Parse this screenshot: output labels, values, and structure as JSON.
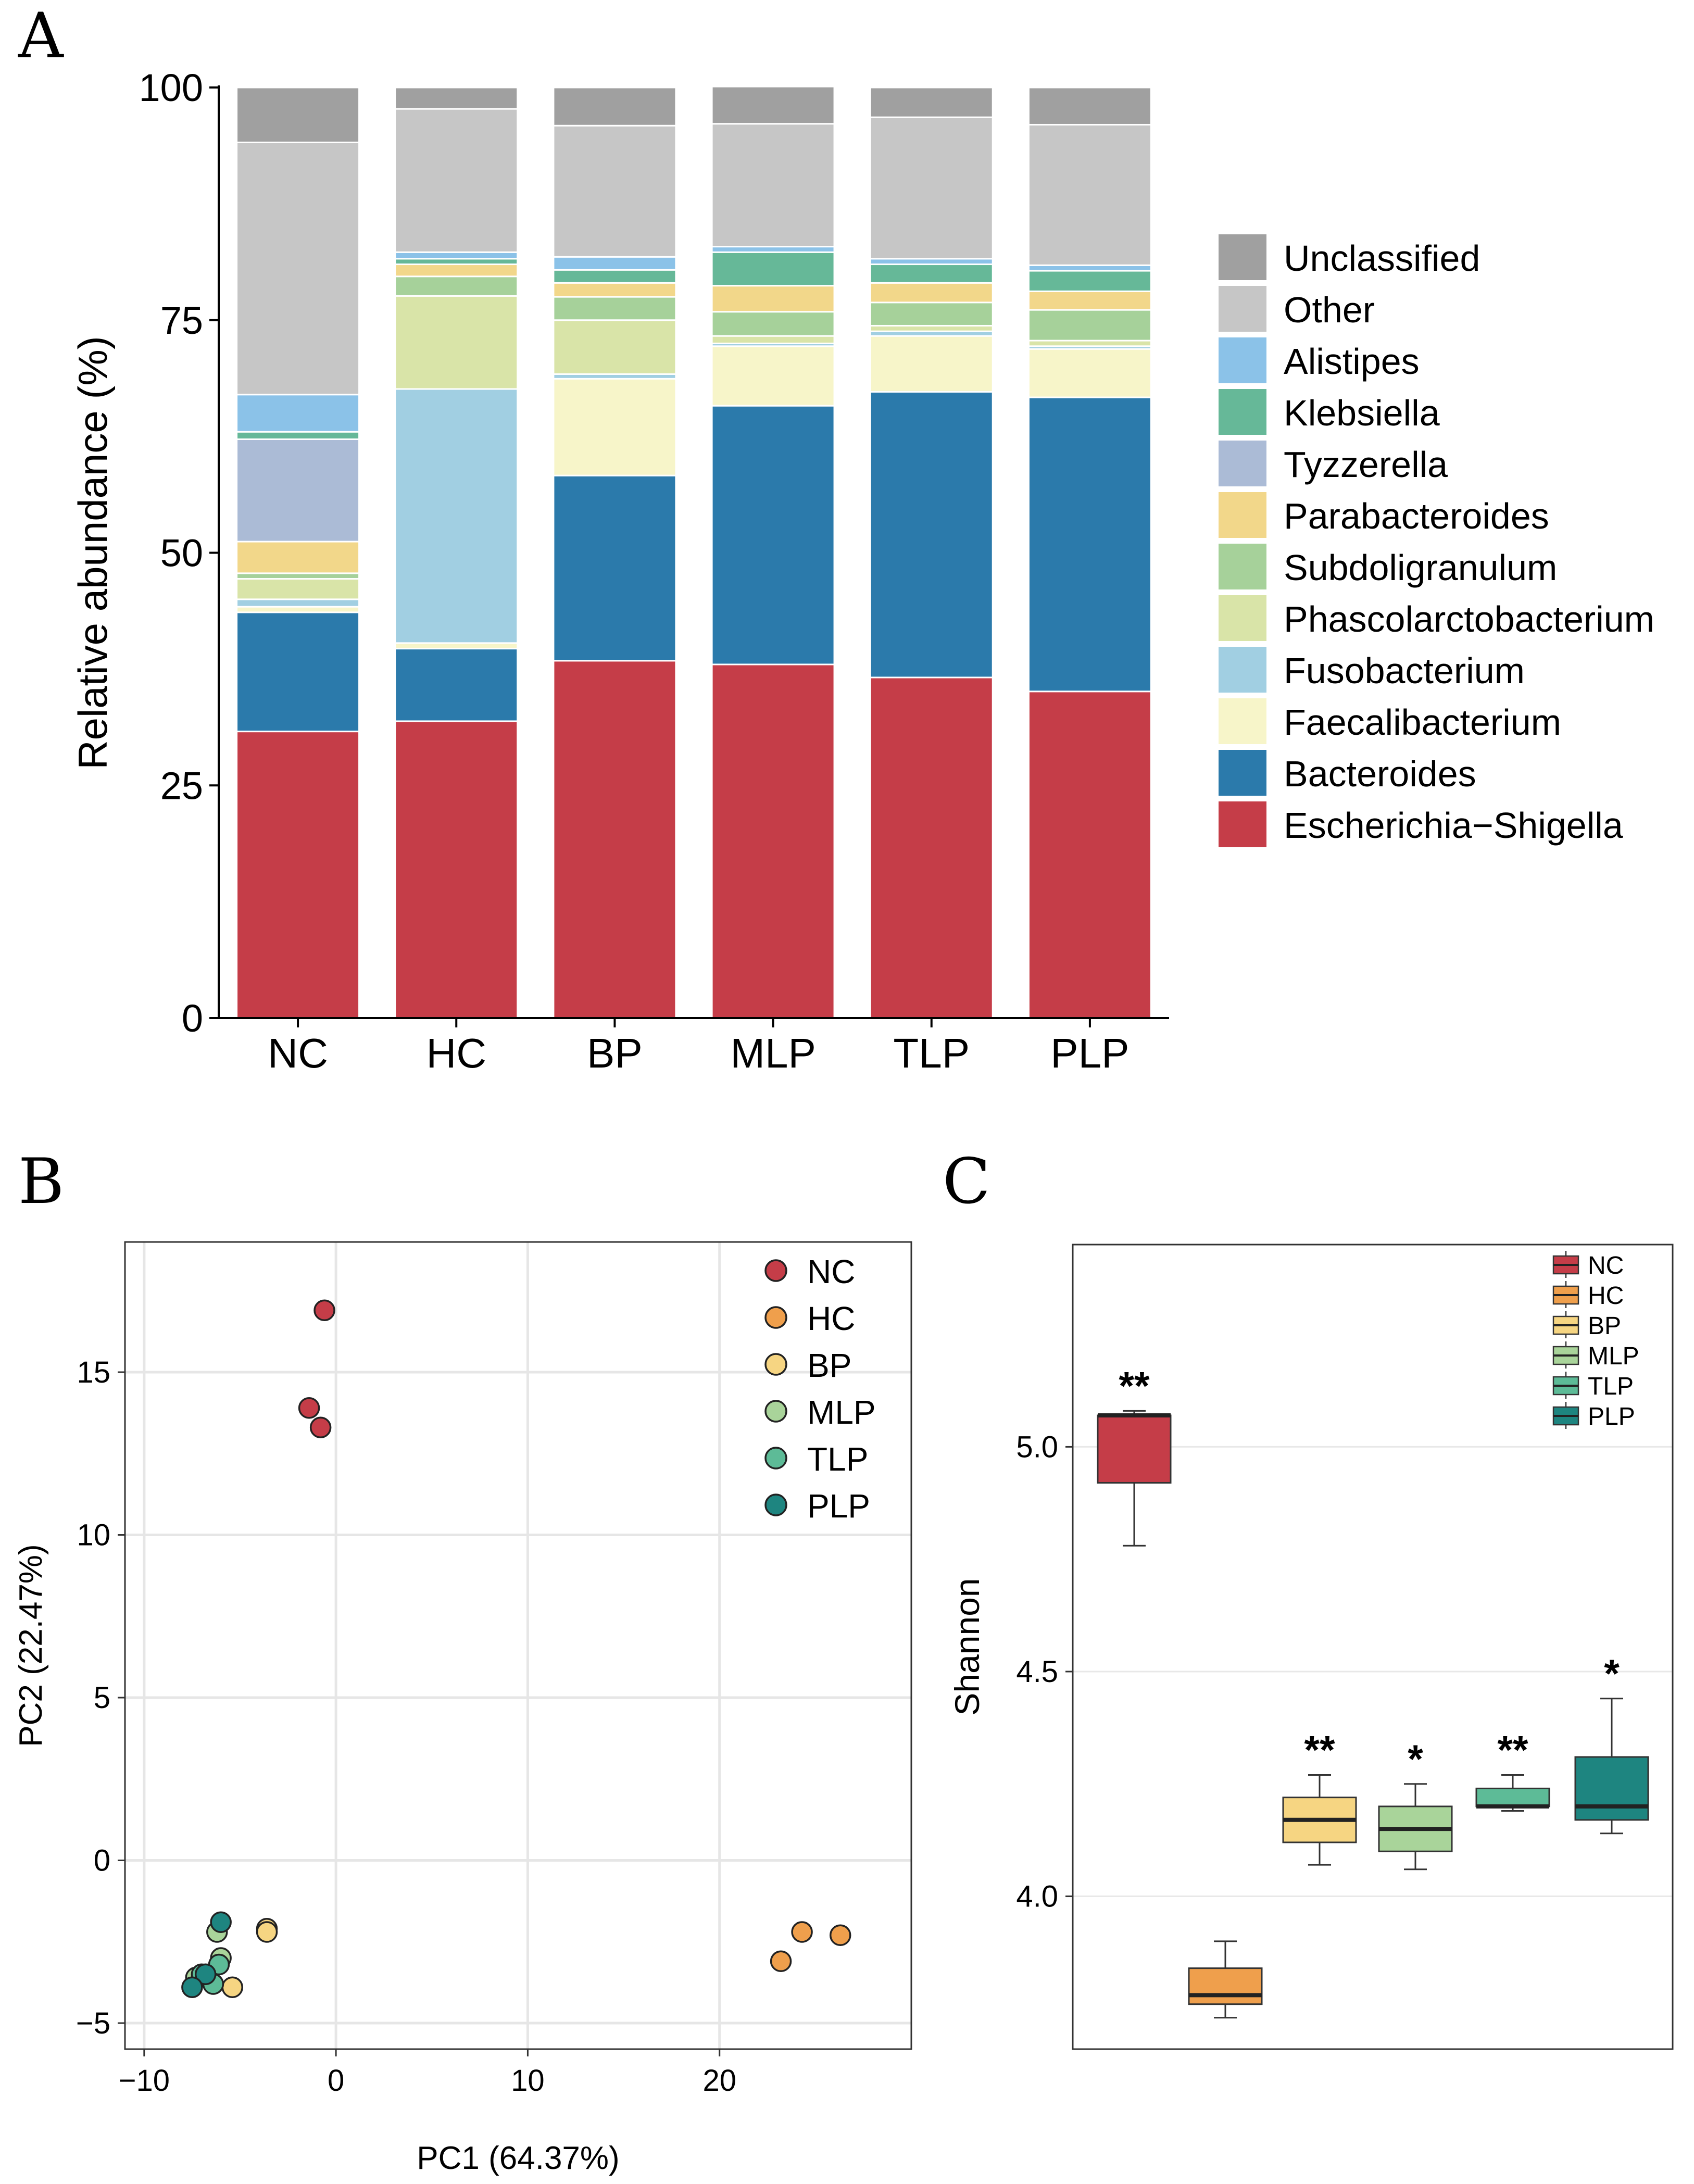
{
  "colors": {
    "Unclassified": "#a0a0a0",
    "Other": "#c6c6c6",
    "Alistipes": "#8bc2e8",
    "Klebsiella": "#66b898",
    "Tyzzerella": "#abbbd6",
    "Parabacteroides": "#f2d78a",
    "Subdoligranulum": "#a6d19a",
    "Phascolarctobacterium": "#d9e4a8",
    "Fusobacterium": "#a1cfe2",
    "Faecalibacterium": "#f7f5c9",
    "Bacteroides": "#2b7aab",
    "Escherichia-Shigella": "#c53d48",
    "NC": "#c53d48",
    "HC": "#ef9f4c",
    "BP": "#f6d582",
    "MLP": "#a9d49a",
    "TLP": "#5dbb97",
    "PLP": "#1e8580"
  },
  "chart_data": [
    {
      "panel": "A",
      "type": "bar",
      "stacked": true,
      "ylabel": "Relative abundance (%)",
      "ylim": [
        0,
        100
      ],
      "yticks": [
        "0",
        "25",
        "50",
        "75",
        "100"
      ],
      "categories": [
        "NC",
        "HC",
        "BP",
        "MLP",
        "TLP",
        "PLP"
      ],
      "series": [
        {
          "name": "Escherichia−Shigella",
          "key": "Escherichia-Shigella",
          "values": [
            30.8,
            31.9,
            38.4,
            38.0,
            36.6,
            35.1
          ]
        },
        {
          "name": "Bacteroides",
          "key": "Bacteroides",
          "values": [
            12.8,
            7.8,
            19.9,
            27.8,
            30.7,
            31.6
          ]
        },
        {
          "name": "Faecalibacterium",
          "key": "Faecalibacterium",
          "values": [
            0.6,
            0.6,
            10.4,
            6.4,
            6.0,
            5.2
          ]
        },
        {
          "name": "Fusobacterium",
          "key": "Fusobacterium",
          "values": [
            0.8,
            27.3,
            0.5,
            0.3,
            0.5,
            0.3
          ]
        },
        {
          "name": "Phascolarctobacterium",
          "key": "Phascolarctobacterium",
          "values": [
            2.2,
            10.0,
            5.8,
            0.8,
            0.6,
            0.6
          ]
        },
        {
          "name": "Subdoligranulum",
          "key": "Subdoligranulum",
          "values": [
            0.6,
            2.1,
            2.5,
            2.6,
            2.5,
            3.3
          ]
        },
        {
          "name": "Parabacteroides",
          "key": "Parabacteroides",
          "values": [
            3.4,
            1.3,
            1.5,
            2.8,
            2.1,
            2.0
          ]
        },
        {
          "name": "Tyzzerella",
          "key": "Tyzzerella",
          "values": [
            11.0,
            0.0,
            0.0,
            0.0,
            0.0,
            0.0
          ]
        },
        {
          "name": "Klebsiella",
          "key": "Klebsiella",
          "values": [
            0.8,
            0.6,
            1.4,
            3.6,
            2.0,
            2.2
          ]
        },
        {
          "name": "Alistipes",
          "key": "Alistipes",
          "values": [
            4.0,
            0.7,
            1.4,
            0.6,
            0.6,
            0.6
          ]
        },
        {
          "name": "Other",
          "key": "Other",
          "values": [
            27.1,
            15.4,
            14.1,
            13.2,
            15.2,
            15.1
          ]
        },
        {
          "name": "Unclassified",
          "key": "Unclassified",
          "values": [
            5.9,
            2.3,
            4.1,
            4.0,
            3.2,
            4.0
          ]
        }
      ],
      "legend_order": [
        "Unclassified",
        "Other",
        "Alistipes",
        "Klebsiella",
        "Tyzzerella",
        "Parabacteroides",
        "Subdoligranulum",
        "Phascolarctobacterium",
        "Fusobacterium",
        "Faecalibacterium",
        "Bacteroides",
        "Escherichia-Shigella"
      ],
      "legend": "right"
    },
    {
      "panel": "B",
      "type": "scatter",
      "xlabel": "PC1 (64.37%)",
      "ylabel": "PC2 (22.47%)",
      "xlim": [
        -11,
        30
      ],
      "ylim": [
        -5.8,
        19
      ],
      "xticks": [
        -10,
        0,
        10,
        20
      ],
      "yticks": [
        -5,
        0,
        5,
        10,
        15
      ],
      "grid": true,
      "legend": "top-right",
      "series": [
        {
          "name": "NC",
          "points": [
            [
              -0.6,
              16.9
            ],
            [
              -1.4,
              13.9
            ],
            [
              -0.8,
              13.3
            ]
          ]
        },
        {
          "name": "HC",
          "points": [
            [
              24.3,
              -2.2
            ],
            [
              26.3,
              -2.3
            ],
            [
              23.2,
              -3.1
            ]
          ]
        },
        {
          "name": "BP",
          "points": [
            [
              -3.6,
              -2.1
            ],
            [
              -3.6,
              -2.2
            ],
            [
              -5.4,
              -3.9
            ]
          ]
        },
        {
          "name": "MLP",
          "points": [
            [
              -6.2,
              -2.2
            ],
            [
              -6.0,
              -3.0
            ],
            [
              -7.3,
              -3.6
            ]
          ]
        },
        {
          "name": "TLP",
          "points": [
            [
              -6.1,
              -3.2
            ],
            [
              -6.4,
              -3.8
            ],
            [
              -7.0,
              -3.5
            ]
          ]
        },
        {
          "name": "PLP",
          "points": [
            [
              -6.0,
              -1.9
            ],
            [
              -6.8,
              -3.5
            ],
            [
              -7.5,
              -3.9
            ]
          ]
        }
      ]
    },
    {
      "panel": "C",
      "type": "box",
      "ylabel": "Shannon",
      "ylim": [
        3.66,
        5.45
      ],
      "yticks": [
        "4.0",
        "4.5",
        "5.0"
      ],
      "grid": true,
      "legend": "top-right",
      "series": [
        {
          "name": "NC",
          "min": 4.78,
          "q1": 4.92,
          "median": 5.07,
          "q3": 5.07,
          "max": 5.08,
          "sig": "**"
        },
        {
          "name": "HC",
          "min": 3.73,
          "q1": 3.76,
          "median": 3.78,
          "q3": 3.84,
          "max": 3.9,
          "sig": ""
        },
        {
          "name": "BP",
          "min": 4.07,
          "q1": 4.12,
          "median": 4.17,
          "q3": 4.22,
          "max": 4.27,
          "sig": "**"
        },
        {
          "name": "MLP",
          "min": 4.06,
          "q1": 4.1,
          "median": 4.15,
          "q3": 4.2,
          "max": 4.25,
          "sig": "*"
        },
        {
          "name": "TLP",
          "min": 4.19,
          "q1": 4.2,
          "median": 4.2,
          "q3": 4.24,
          "max": 4.27,
          "sig": "**"
        },
        {
          "name": "PLP",
          "min": 4.14,
          "q1": 4.17,
          "median": 4.2,
          "q3": 4.31,
          "max": 4.44,
          "sig": "*"
        }
      ]
    }
  ],
  "panels": {
    "a": "A",
    "b": "B",
    "c": "C"
  }
}
